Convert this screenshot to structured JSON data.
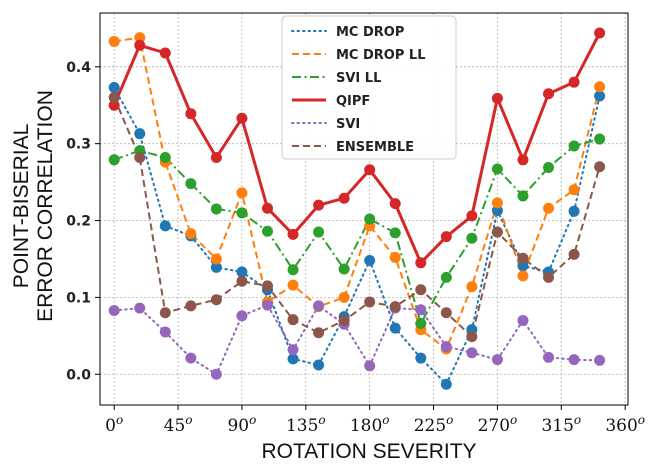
{
  "chart_data": {
    "type": "line",
    "title": "",
    "xlabel": "ROTATION  SEVERITY",
    "ylabel": [
      "POINT-BISERIAL",
      "ERROR  CORRELATION"
    ],
    "xlim": [
      -10,
      362
    ],
    "ylim": [
      -0.04,
      0.47
    ],
    "grid": true,
    "legend_position": "top-center",
    "x_ticks": [
      {
        "value": 0,
        "label": "0",
        "sup": "o"
      },
      {
        "value": 45,
        "label": "45",
        "sup": "o"
      },
      {
        "value": 90,
        "label": "90",
        "sup": "o"
      },
      {
        "value": 135,
        "label": "135",
        "sup": "o"
      },
      {
        "value": 180,
        "label": "180",
        "sup": "o"
      },
      {
        "value": 225,
        "label": "225",
        "sup": "o"
      },
      {
        "value": 270,
        "label": "270",
        "sup": "o"
      },
      {
        "value": 315,
        "label": "315",
        "sup": "o"
      },
      {
        "value": 360,
        "label": "360",
        "sup": "o"
      }
    ],
    "y_ticks": [
      {
        "value": 0.0,
        "label": "0.0"
      },
      {
        "value": 0.1,
        "label": "0.1"
      },
      {
        "value": 0.2,
        "label": "0.2"
      },
      {
        "value": 0.3,
        "label": "0.3"
      },
      {
        "value": 0.4,
        "label": "0.4"
      }
    ],
    "x": [
      0,
      18,
      36,
      54,
      72,
      90,
      108,
      126,
      144,
      162,
      180,
      198,
      216,
      234,
      252,
      270,
      288,
      306,
      324,
      342
    ],
    "series": [
      {
        "name": "MC DROP",
        "color": "#1f77b4",
        "dash": "dotted",
        "values": [
          0.373,
          0.313,
          0.193,
          0.18,
          0.139,
          0.133,
          0.11,
          0.02,
          0.012,
          0.075,
          0.148,
          0.06,
          0.021,
          -0.013,
          0.058,
          0.213,
          0.141,
          0.133,
          0.212,
          0.362
        ]
      },
      {
        "name": "MC DROP LL",
        "color": "#ff7f0e",
        "dash": "dashed",
        "values": [
          0.433,
          0.438,
          0.276,
          0.183,
          0.15,
          0.236,
          0.094,
          0.116,
          0.088,
          0.1,
          0.193,
          0.152,
          0.058,
          0.033,
          0.114,
          0.223,
          0.128,
          0.216,
          0.24,
          0.374
        ]
      },
      {
        "name": "SVI LL",
        "color": "#2ca02c",
        "dash": "dashdot",
        "values": [
          0.279,
          0.291,
          0.282,
          0.248,
          0.215,
          0.21,
          0.186,
          0.136,
          0.185,
          0.137,
          0.202,
          0.184,
          0.066,
          0.126,
          0.177,
          0.267,
          0.232,
          0.269,
          0.297,
          0.306
        ]
      },
      {
        "name": "QIPF",
        "color": "#d62728",
        "dash": "solid",
        "values": [
          0.35,
          0.428,
          0.418,
          0.339,
          0.282,
          0.333,
          0.216,
          0.182,
          0.22,
          0.229,
          0.266,
          0.222,
          0.145,
          0.179,
          0.206,
          0.359,
          0.279,
          0.365,
          0.38,
          0.444
        ]
      },
      {
        "name": "SVI",
        "color": "#9467bd",
        "dash": "dotted",
        "values": [
          0.083,
          0.086,
          0.055,
          0.021,
          0.0,
          0.076,
          0.09,
          0.032,
          0.089,
          0.065,
          0.011,
          0.086,
          0.084,
          0.036,
          0.028,
          0.019,
          0.07,
          0.022,
          0.019,
          0.018
        ]
      },
      {
        "name": "ENSEMBLE",
        "color": "#8c564b",
        "dash": "dashed",
        "values": [
          0.36,
          0.282,
          0.08,
          0.089,
          0.097,
          0.121,
          0.115,
          0.071,
          0.054,
          0.07,
          0.094,
          0.088,
          0.11,
          0.08,
          0.049,
          0.185,
          0.151,
          0.126,
          0.156,
          0.27
        ]
      }
    ]
  }
}
